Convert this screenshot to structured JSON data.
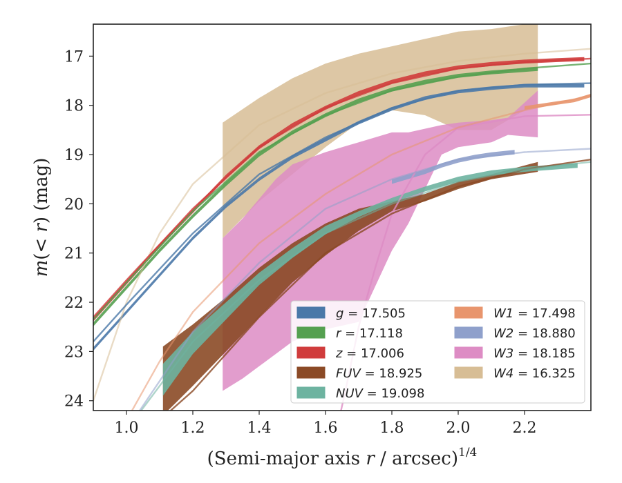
{
  "chart_data": {
    "type": "area",
    "xlabel": "(Semi-major axis r / arcsec)^1/4",
    "ylabel": "m(< r) (mag)",
    "xlim": [
      0.9,
      2.4
    ],
    "ylim": [
      24.2,
      16.35
    ],
    "y_inverted": true,
    "x_ticks": [
      1.0,
      1.2,
      1.4,
      1.6,
      1.8,
      2.0,
      2.2
    ],
    "x_tick_labels": [
      "1.0",
      "1.2",
      "1.4",
      "1.6",
      "1.8",
      "2.0",
      "2.2"
    ],
    "y_ticks": [
      17,
      18,
      19,
      20,
      21,
      22,
      23,
      24
    ],
    "y_tick_labels": [
      "17",
      "18",
      "19",
      "20",
      "21",
      "22",
      "23",
      "24"
    ],
    "grid": false,
    "legend_position": "lower-right",
    "legend_columns": 2,
    "series": [
      {
        "name": "g = 17.505",
        "sym": "g",
        "value": "17.505",
        "color": "#4a78a8",
        "band_x": [
          0.9,
          1.0,
          1.1,
          1.2,
          1.3,
          1.4,
          1.5,
          1.6,
          1.7,
          1.8,
          1.9,
          2.0,
          2.1,
          2.2,
          2.3,
          2.38
        ],
        "band_y": [
          22.95,
          22.2,
          21.45,
          20.7,
          20.05,
          19.5,
          19.05,
          18.7,
          18.35,
          18.07,
          17.85,
          17.72,
          17.65,
          17.6,
          17.6,
          17.6
        ],
        "band_width": 0.07,
        "model_x": [
          0.9,
          1.0,
          1.2,
          1.4,
          1.6,
          1.8,
          2.0,
          2.2,
          2.4
        ],
        "model_y": [
          22.8,
          22.05,
          20.6,
          19.4,
          18.65,
          18.05,
          17.7,
          17.58,
          17.55
        ]
      },
      {
        "name": "r = 17.118",
        "sym": "r",
        "value": "17.118",
        "color": "#55a050",
        "band_x": [
          0.9,
          1.0,
          1.1,
          1.2,
          1.3,
          1.4,
          1.5,
          1.6,
          1.7,
          1.8,
          1.9,
          2.0,
          2.1,
          2.2,
          2.24
        ],
        "band_y": [
          22.45,
          21.7,
          20.95,
          20.25,
          19.6,
          19.0,
          18.55,
          18.2,
          17.9,
          17.68,
          17.52,
          17.4,
          17.33,
          17.28,
          17.26
        ],
        "band_width": 0.08,
        "model_x": [
          0.9,
          1.0,
          1.2,
          1.4,
          1.6,
          1.8,
          2.0,
          2.2,
          2.4
        ],
        "model_y": [
          22.35,
          21.6,
          20.15,
          18.95,
          18.2,
          17.7,
          17.42,
          17.25,
          17.15
        ]
      },
      {
        "name": "z = 17.006",
        "sym": "z",
        "value": "17.006",
        "color": "#d03c3c",
        "band_x": [
          0.9,
          1.0,
          1.1,
          1.2,
          1.3,
          1.4,
          1.5,
          1.6,
          1.7,
          1.8,
          1.9,
          2.0,
          2.1,
          2.2,
          2.3,
          2.38
        ],
        "band_y": [
          22.35,
          21.6,
          20.85,
          20.15,
          19.45,
          18.85,
          18.4,
          18.05,
          17.75,
          17.52,
          17.35,
          17.23,
          17.16,
          17.11,
          17.08,
          17.06
        ],
        "band_width": 0.08,
        "model_x": [
          0.9,
          1.0,
          1.2,
          1.4,
          1.6,
          1.8,
          2.0,
          2.2,
          2.4
        ],
        "model_y": [
          22.3,
          21.55,
          20.1,
          18.85,
          18.05,
          17.55,
          17.25,
          17.12,
          17.05
        ]
      },
      {
        "name": "FUV = 18.925",
        "sym": "FUV",
        "value": "18.925",
        "color": "#8b4a26",
        "band_x": [
          1.11,
          1.2,
          1.3,
          1.4,
          1.5,
          1.6,
          1.7,
          1.8,
          1.9,
          2.0,
          2.1,
          2.24
        ],
        "band_upper": [
          22.9,
          22.45,
          21.9,
          21.3,
          20.8,
          20.4,
          20.1,
          19.95,
          19.8,
          19.55,
          19.4,
          19.15
        ],
        "band_lower": [
          24.3,
          23.7,
          23.0,
          22.3,
          21.6,
          21.05,
          20.55,
          20.15,
          19.95,
          19.7,
          19.5,
          19.35
        ],
        "model_x": [
          1.0,
          1.2,
          1.4,
          1.6,
          1.8,
          2.0,
          2.2,
          2.4
        ],
        "model_y": [
          25.0,
          23.8,
          22.3,
          21.0,
          20.2,
          19.65,
          19.3,
          19.1
        ]
      },
      {
        "name": "NUV = 19.098",
        "sym": "NUV",
        "value": "19.098",
        "color": "#6db3a0",
        "band_x": [
          1.11,
          1.2,
          1.3,
          1.4,
          1.5,
          1.6,
          1.7,
          1.8,
          1.9,
          2.0,
          2.1,
          2.2,
          2.3,
          2.36
        ],
        "band_upper": [
          23.25,
          22.6,
          22.0,
          21.4,
          20.9,
          20.45,
          20.15,
          19.88,
          19.65,
          19.45,
          19.32,
          19.25,
          19.2,
          19.17
        ],
        "band_lower": [
          23.9,
          23.05,
          22.35,
          21.65,
          21.1,
          20.62,
          20.27,
          19.98,
          19.75,
          19.55,
          19.42,
          19.35,
          19.3,
          19.27
        ],
        "model_x": [
          0.9,
          1.0,
          1.2,
          1.4,
          1.6,
          1.8,
          2.0,
          2.2,
          2.4
        ],
        "model_y": [
          25.0,
          24.6,
          22.8,
          21.55,
          20.6,
          20.0,
          19.55,
          19.3,
          19.15
        ]
      },
      {
        "name": "W1 = 17.498",
        "sym": "W1",
        "value": "17.498",
        "color": "#e8956d",
        "band_x": [
          2.2,
          2.25,
          2.3,
          2.35,
          2.4
        ],
        "band_y": [
          18.05,
          18.0,
          17.95,
          17.9,
          17.8
        ],
        "band_width": 0.07,
        "model_x": [
          1.0,
          1.1,
          1.2,
          1.4,
          1.6,
          1.8,
          2.0,
          2.2,
          2.4
        ],
        "model_y": [
          24.4,
          23.2,
          22.2,
          20.8,
          19.8,
          19.0,
          18.45,
          18.1,
          17.8
        ]
      },
      {
        "name": "W2 = 18.880",
        "sym": "W2",
        "value": "18.880",
        "color": "#8fa0cb",
        "band_x": [
          1.8,
          1.85,
          1.9,
          1.95,
          2.0,
          2.05,
          2.1,
          2.17
        ],
        "band_y": [
          19.55,
          19.45,
          19.35,
          19.22,
          19.12,
          19.05,
          19.0,
          18.95
        ],
        "band_width": 0.09,
        "model_x": [
          1.0,
          1.2,
          1.4,
          1.6,
          1.8,
          2.0,
          2.2,
          2.4
        ],
        "model_y": [
          24.6,
          22.6,
          21.2,
          20.1,
          19.5,
          19.1,
          18.95,
          18.88
        ]
      },
      {
        "name": "W3 = 18.185",
        "sym": "W3",
        "value": "18.185",
        "color": "#dd8cc4",
        "band_x": [
          1.29,
          1.35,
          1.4,
          1.45,
          1.5,
          1.6,
          1.7,
          1.8,
          1.85,
          1.95,
          2.0,
          2.1,
          2.15,
          2.24
        ],
        "band_upper": [
          20.7,
          20.3,
          19.9,
          19.5,
          19.2,
          18.95,
          18.75,
          18.55,
          18.55,
          18.4,
          18.35,
          18.3,
          18.25,
          17.7
        ],
        "band_lower": [
          23.8,
          23.55,
          23.3,
          23.05,
          22.8,
          22.55,
          22.4,
          20.95,
          20.4,
          19.0,
          18.85,
          18.75,
          18.6,
          18.65
        ],
        "model_x": [
          1.62,
          1.66,
          1.7,
          1.75,
          1.8,
          1.9,
          2.0,
          2.2,
          2.4
        ],
        "model_y": [
          25.0,
          23.8,
          22.5,
          21.3,
          20.2,
          19.0,
          18.45,
          18.22,
          18.19
        ]
      },
      {
        "name": "W4 = 16.325",
        "sym": "W4",
        "value": "16.325",
        "color": "#d7bd95",
        "band_x": [
          1.29,
          1.4,
          1.5,
          1.6,
          1.7,
          1.8,
          1.9,
          2.0,
          2.1,
          2.2,
          2.24
        ],
        "band_upper": [
          18.35,
          17.85,
          17.45,
          17.15,
          16.95,
          16.8,
          16.65,
          16.5,
          16.45,
          16.35,
          16.35
        ],
        "band_lower": [
          20.7,
          19.95,
          19.4,
          18.85,
          18.35,
          18.1,
          18.2,
          18.5,
          18.5,
          18.1,
          18.05
        ],
        "model_x": [
          0.9,
          1.0,
          1.1,
          1.2,
          1.4,
          1.6,
          1.8,
          2.0,
          2.2,
          2.4
        ],
        "model_y": [
          24.0,
          22.0,
          20.6,
          19.6,
          18.4,
          17.75,
          17.35,
          17.1,
          16.95,
          16.85
        ]
      }
    ]
  }
}
